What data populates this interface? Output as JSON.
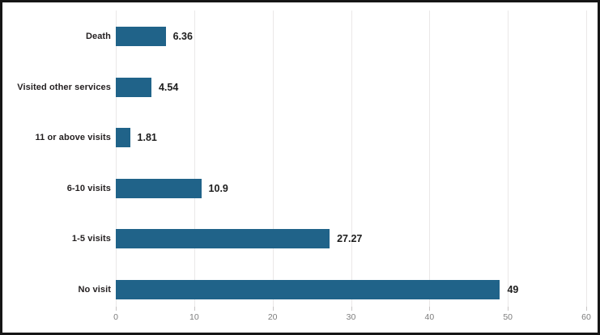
{
  "chart_data": {
    "type": "bar",
    "orientation": "horizontal",
    "title": "",
    "xlabel": "",
    "ylabel": "",
    "categories": [
      "Death",
      "Visited other services",
      "11 or above visits",
      "6-10 visits",
      "1-5 visits",
      "No visit"
    ],
    "values": [
      6.36,
      4.54,
      1.81,
      10.9,
      27.27,
      49
    ],
    "value_labels": [
      "6.36",
      "4.54",
      "1.81",
      "10.9",
      "27.27",
      "49"
    ],
    "x_ticks": [
      0,
      10,
      20,
      30,
      40,
      50,
      60
    ],
    "x_tick_labels": [
      "0",
      "10",
      "20",
      "30",
      "40",
      "50",
      "60"
    ],
    "xlim": [
      0,
      60
    ],
    "grid": "vertical",
    "legend": "none",
    "colors": {
      "bar": "#206389",
      "category_label": "#231f20",
      "value_label": "#1d1d1d",
      "tick_label": "#7d7d7d",
      "gridline": "#eae8e8",
      "tick_mark": "#c9c6c6",
      "frame_border": "#161616",
      "background": "#ffffff"
    }
  }
}
